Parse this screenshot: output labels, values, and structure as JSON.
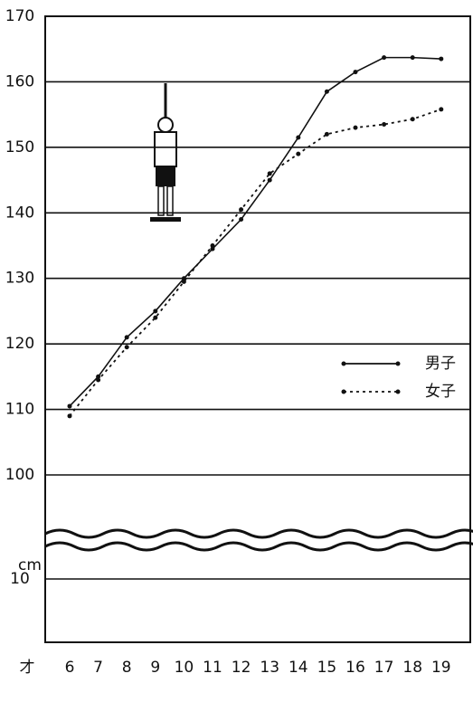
{
  "chart_data": {
    "type": "line",
    "x_label": "才",
    "y_unit": "cm",
    "categories": [
      "6",
      "7",
      "8",
      "9",
      "10",
      "11",
      "12",
      "13",
      "14",
      "15",
      "16",
      "17",
      "18",
      "19"
    ],
    "series": [
      {
        "name": "男子",
        "color": "#111111",
        "dash": false,
        "values": [
          110.5,
          115,
          121,
          125,
          130,
          134.5,
          139,
          145,
          151.5,
          158.5,
          161.5,
          163.7,
          163.7,
          163.5
        ]
      },
      {
        "name": "女子",
        "color": "#111111",
        "dash": true,
        "values": [
          109,
          114.5,
          119.5,
          124,
          129.5,
          135,
          140.5,
          146,
          149,
          152,
          153,
          153.5,
          154.3,
          155.8
        ]
      }
    ],
    "ylim": [
      100,
      170
    ],
    "yticks": [
      100,
      110,
      120,
      130,
      140,
      150,
      160,
      170
    ],
    "lower_yticks": [
      10
    ],
    "grid": true,
    "legend": "right"
  }
}
